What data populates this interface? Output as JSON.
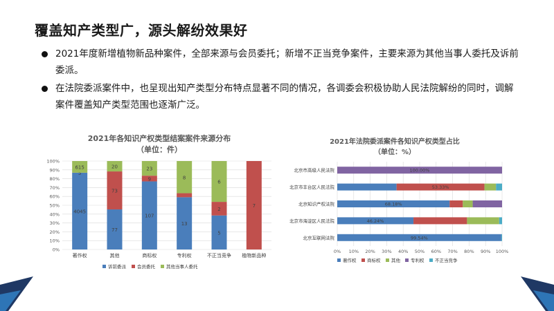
{
  "slide": {
    "title": "覆盖知产类型广，源头解纷效果好",
    "bullets": [
      "2021年度新增植物新品种案件，全部来源与会员委托；新增不正当竞争案件，主要来源为其他当事人委托及诉前委派。",
      "在法院委派案件中，也呈现出知产类型分布特点显著不同的情况，各调委会积极协助人民法院解纷的同时，调解案件覆盖知产类型范围也逐渐广泛。"
    ]
  },
  "colors": {
    "blue": "#4a7ebb",
    "red": "#c0504d",
    "green": "#9bbb59",
    "purple": "#8064a2",
    "cyan": "#4bacc6",
    "grid": "#d9d9d9",
    "navy": "#1f3864",
    "accent": "#2e75b6"
  },
  "chart_data": [
    {
      "type": "bar",
      "stacked": "percent",
      "orientation": "vertical",
      "title": "2021年各知识产权类型结案案件来源分布",
      "subtitle": "（单位：件）",
      "categories": [
        "著作权",
        "其他",
        "商标权",
        "专利权",
        "不正当竞争",
        "植物新品种"
      ],
      "series": [
        {
          "name": "诉前委派",
          "values": [
            4045,
            77,
            107,
            13,
            5,
            0
          ],
          "labels": [
            "4045",
            "77",
            "107",
            "13",
            "5",
            ""
          ]
        },
        {
          "name": "会员委托",
          "values": [
            5,
            73,
            9,
            1,
            2,
            7
          ],
          "labels": [
            "5",
            "73",
            "9",
            "",
            "2",
            "7"
          ]
        },
        {
          "name": "其他当事人委托",
          "values": [
            615,
            20,
            23,
            8,
            6,
            0
          ],
          "labels": [
            "615",
            "20",
            "23",
            "8",
            "6",
            ""
          ]
        }
      ],
      "y_ticks": [
        "0%",
        "10%",
        "20%",
        "30%",
        "40%",
        "50%",
        "60%",
        "70%",
        "80%",
        "90%",
        "100%"
      ],
      "ylim": [
        0,
        100
      ],
      "grid": true,
      "legend": "bottom"
    },
    {
      "type": "bar",
      "stacked": "percent",
      "orientation": "horizontal",
      "title": "2021年法院委派案件各知识产权类型占比",
      "subtitle": "（单位：%）",
      "categories": [
        "北京市高级人民法院",
        "北京市丰台区人民法院",
        "北京知识产权法院",
        "北京市海淀区人民法院",
        "北京互联网法院"
      ],
      "series": [
        {
          "name": "著作权",
          "values": [
            0,
            36.0,
            68.18,
            46.24,
            99.54
          ],
          "labels": [
            "",
            "",
            "68.18%",
            "46.24%",
            "99.54%"
          ]
        },
        {
          "name": "商标权",
          "values": [
            0,
            53.33,
            8.0,
            32.5,
            0.0
          ],
          "labels": [
            "",
            "53.33%",
            "",
            "",
            ""
          ]
        },
        {
          "name": "其他",
          "values": [
            0,
            7.0,
            6.0,
            19.5,
            0.0
          ],
          "labels": [
            "",
            "",
            "",
            "",
            ""
          ]
        },
        {
          "name": "专利权",
          "values": [
            100.0,
            0.0,
            17.82,
            0.0,
            0.0
          ],
          "labels": [
            "100.00%",
            "",
            "",
            "",
            ""
          ]
        },
        {
          "name": "不正当竞争",
          "values": [
            0,
            3.67,
            0.0,
            1.76,
            0.46
          ],
          "labels": [
            "",
            "",
            "",
            "",
            ""
          ]
        }
      ],
      "x_ticks": [
        "0%",
        "10%",
        "20%",
        "30%",
        "40%",
        "50%",
        "60%",
        "70%",
        "80%",
        "90%",
        "100%"
      ],
      "xlim": [
        0,
        100
      ],
      "grid": true,
      "legend": "bottom"
    }
  ]
}
